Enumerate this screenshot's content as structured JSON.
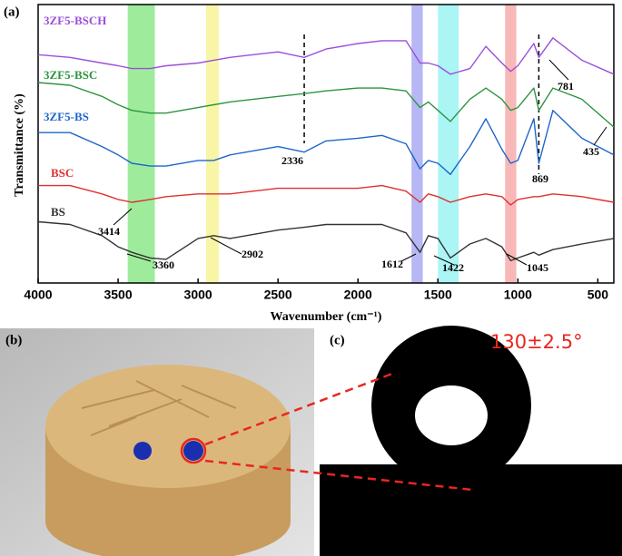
{
  "chart_data": {
    "type": "line",
    "panel_label": "(a)",
    "xlabel": "Wavenumber (cm⁻¹)",
    "ylabel": "Transmittance (%)",
    "xlim": [
      4000,
      400
    ],
    "ylim": [
      0,
      100
    ],
    "xticks": [
      4000,
      3500,
      3000,
      2500,
      2000,
      1500,
      1000,
      500
    ],
    "x": [
      4000,
      3800,
      3600,
      3500,
      3414,
      3300,
      3200,
      3000,
      2902,
      2800,
      2500,
      2336,
      2200,
      2000,
      1850,
      1700,
      1612,
      1560,
      1500,
      1422,
      1300,
      1200,
      1100,
      1045,
      1000,
      900,
      869,
      781,
      600,
      400
    ],
    "series": [
      {
        "name": "3ZF5-BSCH",
        "color": "#9b4fd9",
        "values": [
          82,
          81,
          79,
          78,
          77,
          77,
          78,
          79,
          80,
          81,
          83,
          81,
          84,
          86,
          87,
          87,
          79,
          79,
          78,
          75,
          77,
          85,
          79,
          76,
          78,
          86,
          81,
          88,
          80,
          75
        ]
      },
      {
        "name": "3ZF5-BSC",
        "color": "#2e9440",
        "values": [
          72,
          71,
          67,
          64,
          62,
          61,
          61,
          63,
          64,
          65,
          67,
          68,
          69,
          70,
          70,
          69,
          63,
          65,
          62,
          58,
          66,
          70,
          66,
          62,
          63,
          70,
          62,
          70,
          66,
          56
        ]
      },
      {
        "name": "3ZF5-BS",
        "color": "#1f66c9",
        "values": [
          54,
          54,
          49,
          46,
          43,
          42,
          42,
          44,
          44,
          46,
          49,
          47,
          51,
          52,
          53,
          50,
          41,
          44,
          43,
          39,
          49,
          59,
          48,
          43,
          44,
          59,
          43,
          62,
          52,
          46
        ]
      },
      {
        "name": "BSC",
        "color": "#e0302e",
        "values": [
          35,
          35,
          32,
          30,
          29,
          30,
          31,
          32,
          32,
          32,
          34,
          34,
          34,
          34,
          35,
          33,
          29,
          32,
          31,
          29,
          31,
          32,
          31,
          28,
          30,
          31,
          31,
          32,
          31,
          29
        ]
      },
      {
        "name": "BS",
        "color": "#333333",
        "values": [
          22,
          21,
          17,
          13,
          11,
          9,
          8.5,
          16,
          17,
          16,
          19,
          20,
          21,
          21,
          21,
          18,
          11,
          17,
          16,
          9,
          14,
          16,
          13,
          8,
          9,
          11,
          10,
          12,
          14,
          16
        ]
      }
    ],
    "bands": [
      {
        "range": [
          3440,
          3270
        ],
        "color": "#7ee57a"
      },
      {
        "range": [
          2950,
          2870
        ],
        "color": "#f5f28a"
      },
      {
        "range": [
          1665,
          1595
        ],
        "color": "#9d9ff0"
      },
      {
        "range": [
          1500,
          1370
        ],
        "color": "#8ff2f2"
      },
      {
        "range": [
          1080,
          1010
        ],
        "color": "#f5a0a0"
      }
    ],
    "dashed_lines": [
      2336,
      869
    ],
    "annotations": [
      "3414",
      "3360",
      "2902",
      "2336",
      "1612",
      "1422",
      "1045",
      "869",
      "781",
      "435"
    ]
  },
  "photo_b": {
    "panel_label": "(b)"
  },
  "photo_c": {
    "panel_label": "(c)",
    "angle": "130±2.5°"
  }
}
